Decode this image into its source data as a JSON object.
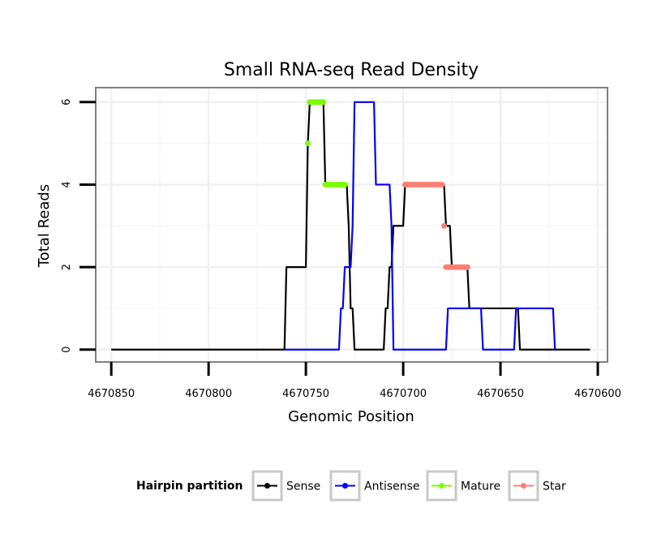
{
  "chart_data": {
    "type": "line",
    "title": "Small RNA-seq Read Density",
    "xlabel": "Genomic Position",
    "ylabel": "Total Reads",
    "xlim": [
      4670858,
      4670595
    ],
    "ylim": [
      -0.3,
      6.35
    ],
    "x_reversed": true,
    "xticks": [
      4670850,
      4670800,
      4670750,
      4670700,
      4670650,
      4670600
    ],
    "xtick_labels": [
      "4670850",
      "4670800",
      "4670750",
      "4670700",
      "4670650",
      "4670600"
    ],
    "yticks": [
      0,
      2,
      4,
      6
    ],
    "ytick_labels": [
      "0",
      "2",
      "4",
      "6"
    ],
    "grid": true,
    "legend": {
      "title": "Hairpin partition",
      "position": "bottom",
      "entries": [
        {
          "label": "Sense",
          "color": "#000000"
        },
        {
          "label": "Antisense",
          "color": "#0000ff"
        },
        {
          "label": "Mature",
          "color": "#7cfc00"
        },
        {
          "label": "Star",
          "color": "#fa8072"
        }
      ]
    },
    "series": [
      {
        "name": "Sense",
        "color": "#000000",
        "style": "line",
        "x": [
          4670850,
          4670761,
          4670760,
          4670750,
          4670749,
          4670748,
          4670741,
          4670740,
          4670736,
          4670735,
          4670729,
          4670728,
          4670727,
          4670726,
          4670725,
          4670711,
          4670710,
          4670709,
          4670708,
          4670707,
          4670706,
          4670705,
          4670704,
          4670703,
          4670700,
          4670699,
          4670680,
          4670679,
          4670678,
          4670677,
          4670676,
          4670675,
          4670673,
          4670672,
          4670671,
          4670670,
          4670669,
          4670668,
          4670667,
          4670666,
          4670664,
          4670663,
          4670659,
          4670658,
          4670657,
          4670656,
          4670655,
          4670641,
          4670640,
          4670604
        ],
        "y": [
          0,
          0,
          2,
          2,
          5,
          6,
          6,
          4,
          4,
          4,
          4,
          3,
          1,
          1,
          0,
          0,
          0,
          1,
          1,
          2,
          2,
          3,
          3,
          3,
          3,
          4,
          4,
          4,
          3,
          3,
          3,
          2,
          2,
          2,
          2,
          2,
          2,
          2,
          2,
          1,
          1,
          1,
          1,
          1,
          1,
          1,
          1,
          1,
          0,
          0
        ]
      },
      {
        "name": "Antisense",
        "color": "#0000ff",
        "style": "line",
        "x": [
          4670761,
          4670733,
          4670732,
          4670731,
          4670730,
          4670727,
          4670726,
          4670725,
          4670715,
          4670714,
          4670708,
          4670707,
          4670706,
          4670705,
          4670678,
          4670677,
          4670660,
          4670659,
          4670643,
          4670642,
          4670638,
          4670637,
          4670623,
          4670622
        ],
        "y": [
          0,
          0,
          1,
          1,
          2,
          2,
          3,
          6,
          6,
          4,
          4,
          4,
          3,
          0,
          0,
          1,
          1,
          0,
          0,
          1,
          1,
          1,
          1,
          0
        ]
      },
      {
        "name": "Mature",
        "color": "#7cfc00",
        "style": "points",
        "x": [
          4670749,
          4670748,
          4670747,
          4670746,
          4670745,
          4670744,
          4670743,
          4670742,
          4670741,
          4670740,
          4670739,
          4670738,
          4670737,
          4670736,
          4670735,
          4670734,
          4670733,
          4670732,
          4670731,
          4670730
        ],
        "y": [
          5,
          6,
          6,
          6,
          6,
          6,
          6,
          6,
          6,
          4,
          4,
          4,
          4,
          4,
          4,
          4,
          4,
          4,
          4,
          4
        ]
      },
      {
        "name": "Star",
        "color": "#fa8072",
        "style": "points",
        "x": [
          4670699,
          4670698,
          4670697,
          4670696,
          4670695,
          4670694,
          4670693,
          4670692,
          4670691,
          4670690,
          4670689,
          4670688,
          4670687,
          4670686,
          4670685,
          4670684,
          4670683,
          4670682,
          4670681,
          4670680,
          4670679,
          4670678,
          4670677,
          4670676,
          4670675,
          4670674,
          4670673,
          4670672,
          4670671,
          4670670,
          4670669,
          4670668,
          4670667
        ],
        "y": [
          4,
          4,
          4,
          4,
          4,
          4,
          4,
          4,
          4,
          4,
          4,
          4,
          4,
          4,
          4,
          4,
          4,
          4,
          4,
          4,
          3,
          2,
          2,
          2,
          2,
          2,
          2,
          2,
          2,
          2,
          2,
          2,
          2
        ]
      }
    ]
  }
}
